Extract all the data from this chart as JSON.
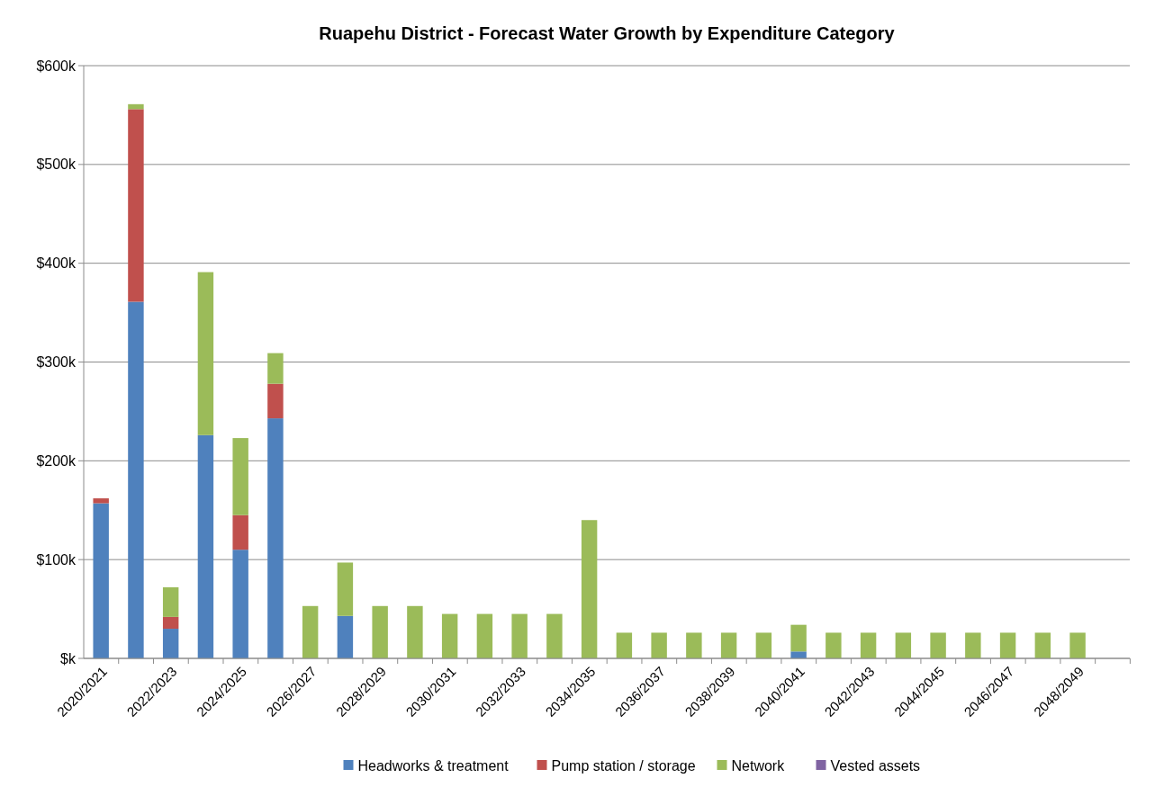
{
  "chart_data": {
    "type": "bar",
    "title": "Ruapehu District - Forecast Water Growth by Expenditure Category",
    "stacked": true,
    "categories": [
      "2020/2021",
      null,
      "2022/2023",
      null,
      "2024/2025",
      null,
      "2026/2027",
      null,
      "2028/2029",
      null,
      "2030/2031",
      null,
      "2032/2033",
      null,
      "2034/2035",
      null,
      "2036/2037",
      null,
      "2038/2039",
      null,
      "2040/2041",
      null,
      "2042/2043",
      null,
      "2044/2045",
      null,
      "2046/2047",
      null,
      "2048/2049",
      null
    ],
    "series": [
      {
        "name": "Headworks & treatment",
        "color": "#4f81bd",
        "values": [
          157,
          361,
          30,
          226,
          110,
          243,
          0,
          43,
          0,
          0,
          0,
          0,
          0,
          0,
          0,
          0,
          0,
          0,
          0,
          0,
          7,
          0,
          0,
          0,
          0,
          0,
          0,
          0,
          0,
          0
        ]
      },
      {
        "name": "Pump station / storage",
        "color": "#c0504d",
        "values": [
          5,
          195,
          12,
          0,
          35,
          35,
          0,
          0,
          0,
          0,
          0,
          0,
          0,
          0,
          0,
          0,
          0,
          0,
          0,
          0,
          0,
          0,
          0,
          0,
          0,
          0,
          0,
          0,
          0,
          0
        ]
      },
      {
        "name": "Network",
        "color": "#9bbb59",
        "values": [
          0,
          5,
          30,
          165,
          78,
          31,
          53,
          54,
          53,
          53,
          45,
          45,
          45,
          45,
          140,
          26,
          26,
          26,
          26,
          26,
          27,
          26,
          26,
          26,
          26,
          26,
          26,
          26,
          26,
          0
        ]
      },
      {
        "name": "Vested assets",
        "color": "#8064a2",
        "values": [
          0,
          0,
          0,
          0,
          0,
          0,
          0,
          0,
          0,
          0,
          0,
          0,
          0,
          0,
          0,
          0,
          0,
          0,
          0,
          0,
          0,
          0,
          0,
          0,
          0,
          0,
          0,
          0,
          0,
          0
        ]
      }
    ],
    "ylim": [
      0,
      600
    ],
    "yticks": [
      {
        "value": 0,
        "label": "$k"
      },
      {
        "value": 100,
        "label": "$100k"
      },
      {
        "value": 200,
        "label": "$200k"
      },
      {
        "value": 300,
        "label": "$300k"
      },
      {
        "value": 400,
        "label": "$400k"
      },
      {
        "value": 500,
        "label": "$500k"
      },
      {
        "value": 600,
        "label": "$600k"
      }
    ],
    "grid": "y",
    "legend": "bottom"
  }
}
